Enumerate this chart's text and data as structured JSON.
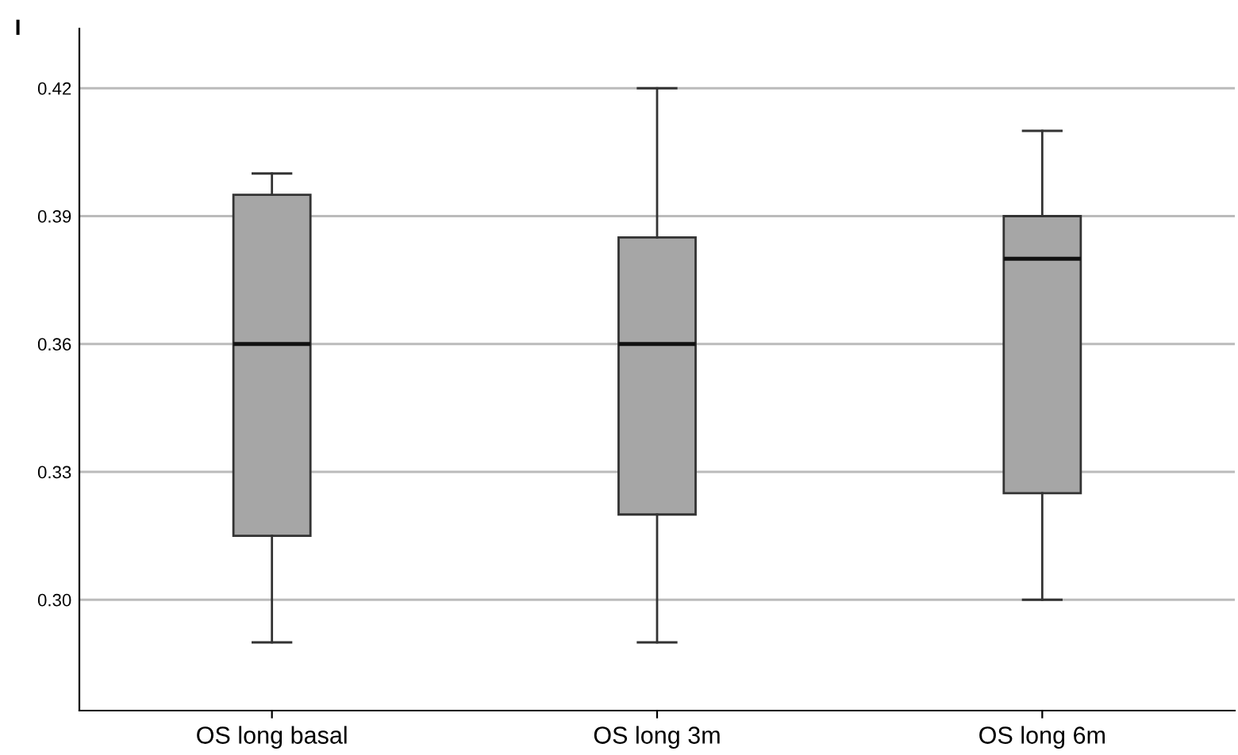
{
  "chart_data": {
    "type": "box",
    "categories": [
      "OS long basal",
      "OS long 3m",
      "OS long 6m"
    ],
    "boxes": [
      {
        "low": 0.29,
        "q1": 0.315,
        "median": 0.36,
        "q3": 0.395,
        "high": 0.4
      },
      {
        "low": 0.29,
        "q1": 0.32,
        "median": 0.36,
        "q3": 0.385,
        "high": 0.42
      },
      {
        "low": 0.3,
        "q1": 0.325,
        "median": 0.38,
        "q3": 0.39,
        "high": 0.41
      }
    ],
    "color": "#a6a6a6",
    "ylim": [
      0.274,
      0.434
    ],
    "yticks": [
      {
        "value": 0.3,
        "label": "0.30"
      },
      {
        "value": 0.33,
        "label": "0.33"
      },
      {
        "value": 0.36,
        "label": "0.36"
      },
      {
        "value": 0.39,
        "label": "0.39"
      },
      {
        "value": 0.42,
        "label": "0.42"
      }
    ],
    "grid": "y",
    "annotations": [
      "I"
    ]
  }
}
